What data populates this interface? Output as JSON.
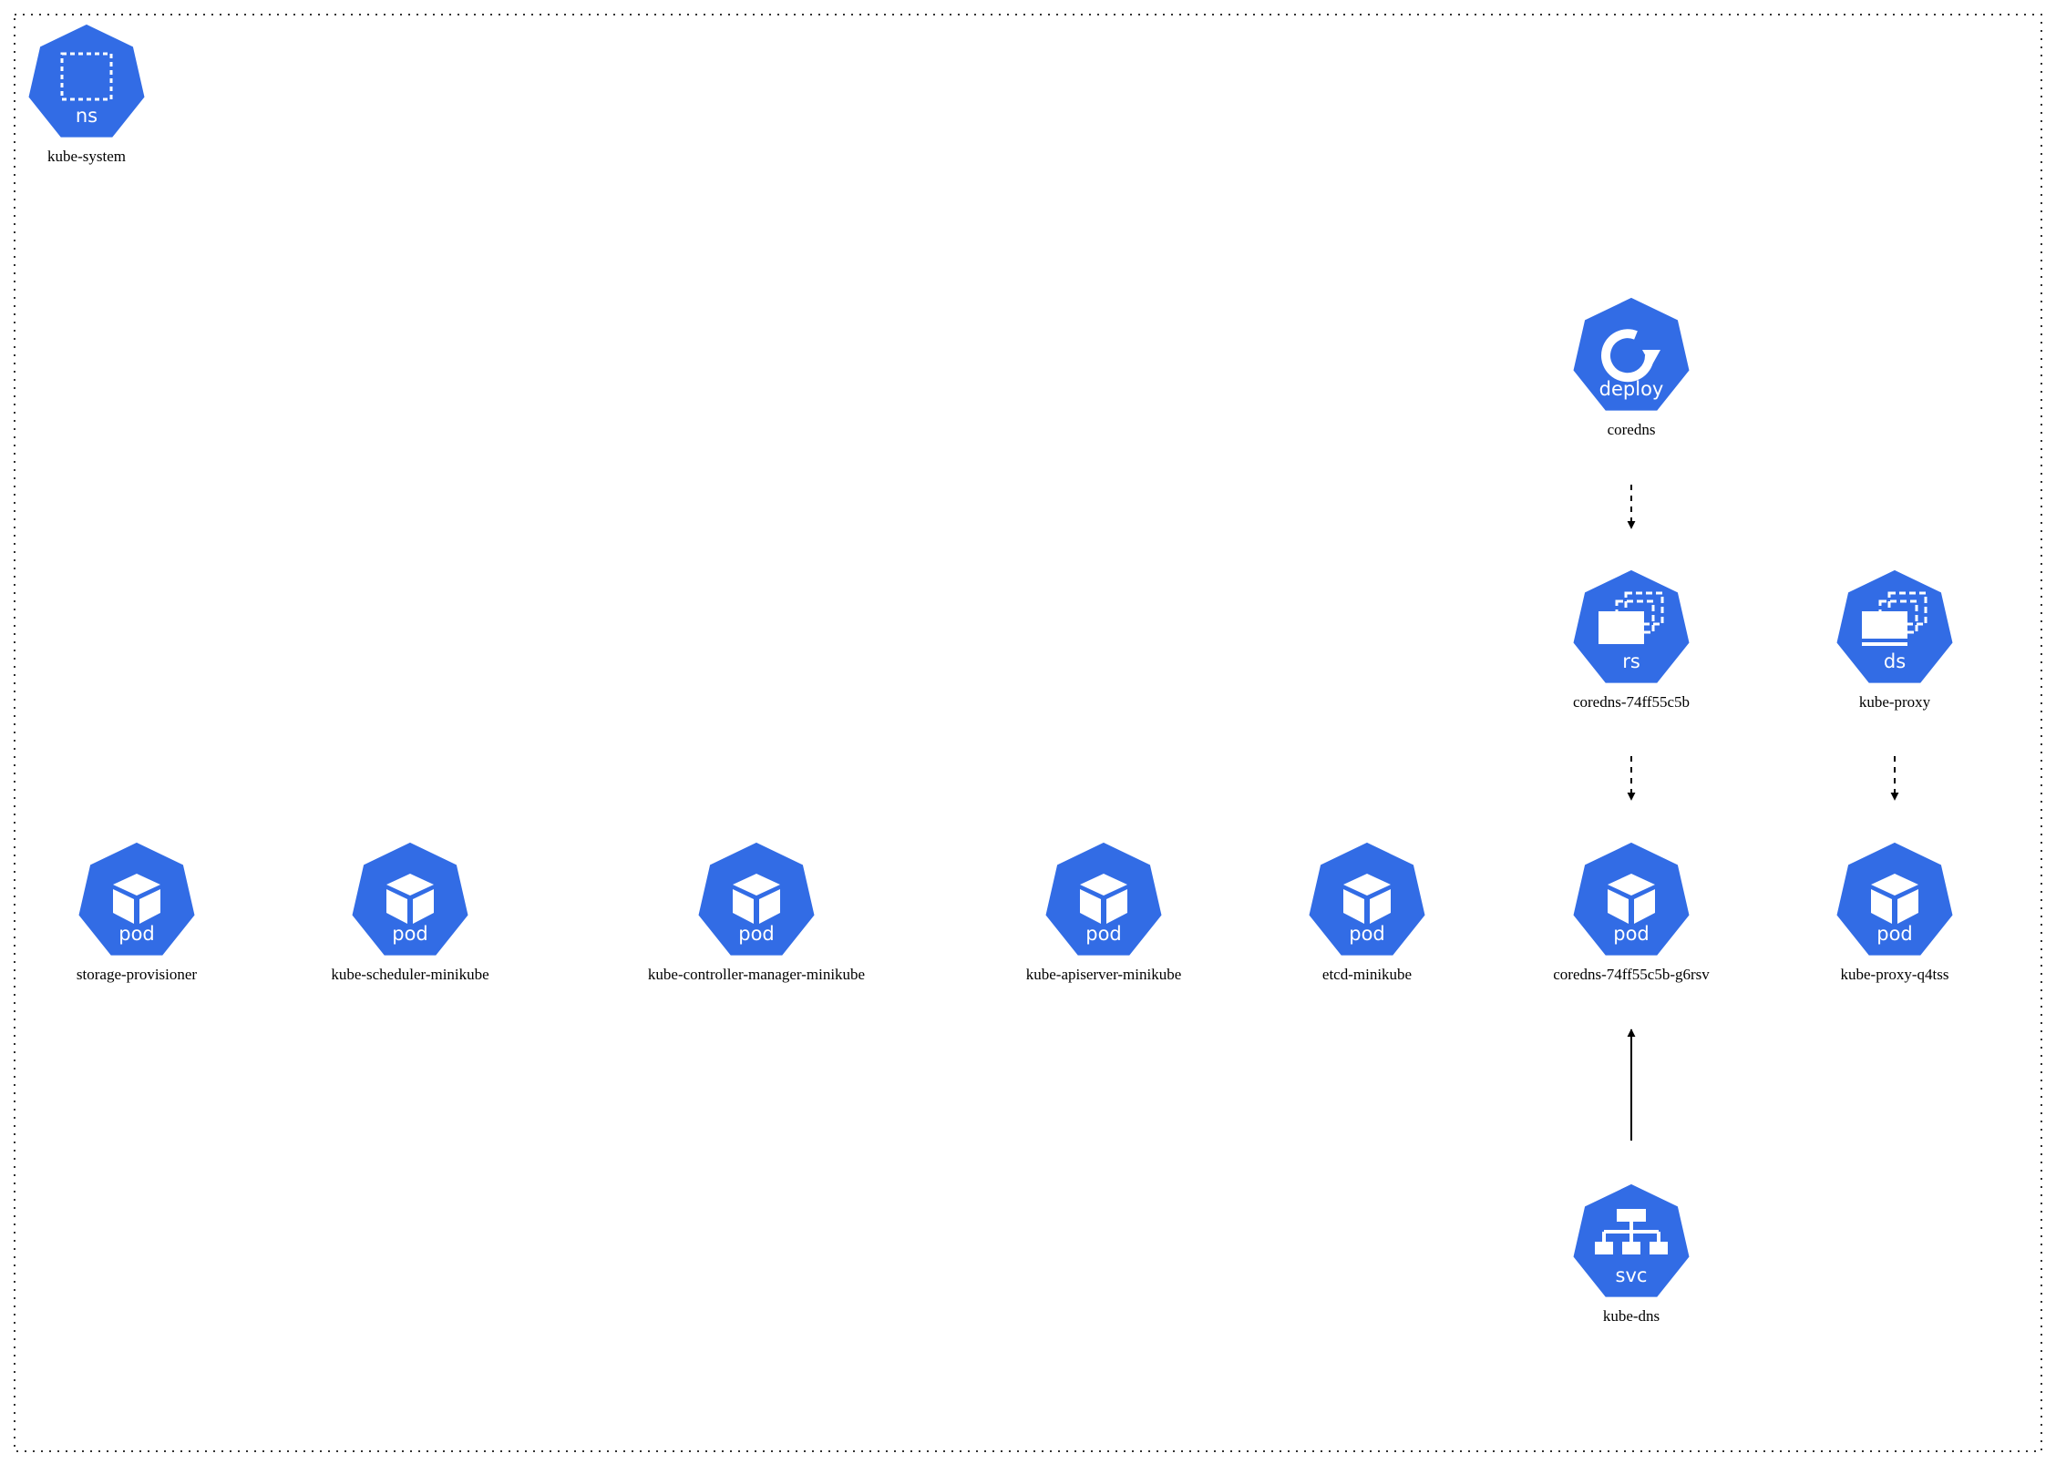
{
  "diagram": {
    "title": "kube-system",
    "namespace": {
      "kind": "ns",
      "name": "kube-system"
    },
    "colors": {
      "node_fill": "#326CE5",
      "icon": "#FFFFFF",
      "frame": "#333333",
      "edge": "#000000",
      "label": "#000000",
      "background": "#FFFFFF"
    },
    "nodes": [
      {
        "id": "deploy-coredns",
        "kind": "deploy",
        "name": "coredns",
        "icon": "deployment-icon"
      },
      {
        "id": "rs-coredns",
        "kind": "rs",
        "name": "coredns-74ff55c5b",
        "icon": "replicaset-icon"
      },
      {
        "id": "ds-kube-proxy",
        "kind": "ds",
        "name": "kube-proxy",
        "icon": "daemonset-icon"
      },
      {
        "id": "pod-storage-provisioner",
        "kind": "pod",
        "name": "storage-provisioner",
        "icon": "pod-icon"
      },
      {
        "id": "pod-kube-scheduler",
        "kind": "pod",
        "name": "kube-scheduler-minikube",
        "icon": "pod-icon"
      },
      {
        "id": "pod-kube-controller-manager",
        "kind": "pod",
        "name": "kube-controller-manager-minikube",
        "icon": "pod-icon"
      },
      {
        "id": "pod-kube-apiserver",
        "kind": "pod",
        "name": "kube-apiserver-minikube",
        "icon": "pod-icon"
      },
      {
        "id": "pod-etcd",
        "kind": "pod",
        "name": "etcd-minikube",
        "icon": "pod-icon"
      },
      {
        "id": "pod-coredns",
        "kind": "pod",
        "name": "coredns-74ff55c5b-g6rsv",
        "icon": "pod-icon"
      },
      {
        "id": "pod-kube-proxy",
        "kind": "pod",
        "name": "kube-proxy-q4tss",
        "icon": "pod-icon"
      },
      {
        "id": "svc-kube-dns",
        "kind": "svc",
        "name": "kube-dns",
        "icon": "service-icon"
      }
    ],
    "edges": [
      {
        "from": "deploy-coredns",
        "to": "rs-coredns",
        "style": "dashed"
      },
      {
        "from": "rs-coredns",
        "to": "pod-coredns",
        "style": "dashed"
      },
      {
        "from": "ds-kube-proxy",
        "to": "pod-kube-proxy",
        "style": "dashed"
      },
      {
        "from": "svc-kube-dns",
        "to": "pod-coredns",
        "style": "solid"
      }
    ]
  }
}
